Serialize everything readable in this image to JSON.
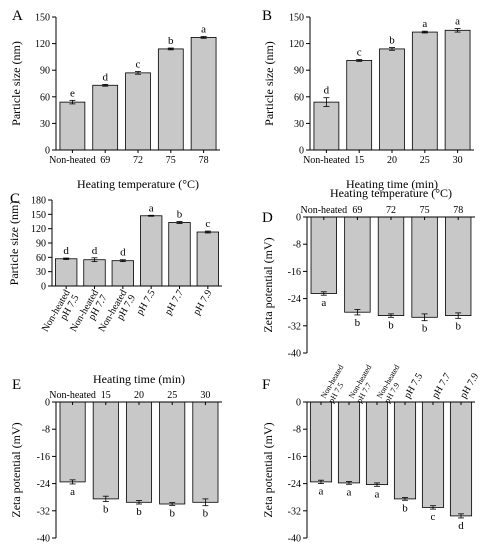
{
  "chart_data": [
    {
      "panel": "A",
      "type": "bar",
      "categories": [
        "Non-heated",
        "69",
        "72",
        "75",
        "78"
      ],
      "values": [
        54,
        73,
        87,
        114,
        127
      ],
      "errors": [
        2,
        1,
        1.5,
        1,
        1
      ],
      "letters": [
        "e",
        "d",
        "c",
        "b",
        "a"
      ],
      "xlabel": "Heating temperature (°C)",
      "ylabel": "Particle size (nm)",
      "ylim": [
        0,
        150
      ],
      "yticks": [
        0,
        30,
        60,
        90,
        120,
        150
      ],
      "ytick_labels": [
        "0",
        "30",
        "60",
        "90",
        "120",
        "150"
      ]
    },
    {
      "panel": "B",
      "type": "bar",
      "categories": [
        "Non-heated",
        "15",
        "20",
        "25",
        "30"
      ],
      "values": [
        54,
        101,
        114,
        133,
        135
      ],
      "errors": [
        5,
        1,
        1.5,
        1,
        2
      ],
      "letters": [
        "d",
        "c",
        "b",
        "a",
        "a"
      ],
      "xlabel": "Heating time (min)",
      "ylabel": "Particle size (nm)",
      "ylim": [
        0,
        150
      ],
      "yticks": [
        0,
        30,
        60,
        90,
        120,
        150
      ],
      "ytick_labels": [
        "0",
        "30",
        "60",
        "90",
        "120",
        "150"
      ]
    },
    {
      "panel": "C",
      "type": "bar",
      "categories": [
        "Non-heated pH 7.5",
        "Non-heated pH 7.7",
        "Non-heated pH 7.9",
        "pH 7.5",
        "pH 7.7",
        "pH 7.9"
      ],
      "values": [
        57,
        55,
        53,
        147,
        133,
        113
      ],
      "errors": [
        1.5,
        4,
        2,
        1,
        2,
        2
      ],
      "letters": [
        "d",
        "d",
        "d",
        "a",
        "b",
        "c"
      ],
      "xlabel": "",
      "ylabel": "Particle size (nm)",
      "ylim": [
        0,
        180
      ],
      "yticks": [
        0,
        30,
        60,
        90,
        120,
        150,
        180
      ],
      "ytick_labels": [
        "0",
        "30",
        "60",
        "90",
        "120",
        "150",
        "180"
      ]
    },
    {
      "panel": "D",
      "type": "bar",
      "categories": [
        "Non-heated",
        "69",
        "72",
        "75",
        "78"
      ],
      "values": [
        -22.5,
        -28,
        -29,
        -29.5,
        -29
      ],
      "errors": [
        0.5,
        0.8,
        0.5,
        1,
        0.8
      ],
      "letters": [
        "a",
        "b",
        "b",
        "b",
        "b"
      ],
      "xlabel": "Heating temperature (°C)",
      "ylabel": "Zeta potential (mV)",
      "ylim": [
        -40,
        0
      ],
      "yticks": [
        0,
        -8,
        -16,
        -24,
        -32,
        -40
      ],
      "ytick_labels": [
        "0",
        "-8",
        "-16",
        "-24",
        "-32",
        "-40"
      ]
    },
    {
      "panel": "E",
      "type": "bar",
      "categories": [
        "Non-heated",
        "15",
        "20",
        "25",
        "30"
      ],
      "values": [
        -23.5,
        -28.5,
        -29.5,
        -30,
        -29.5
      ],
      "errors": [
        0.6,
        0.8,
        0.5,
        0.4,
        1
      ],
      "letters": [
        "a",
        "b",
        "b",
        "b",
        "b"
      ],
      "xlabel": "Heating time (min)",
      "ylabel": "Zeta potential (mV)",
      "ylim": [
        -40,
        0
      ],
      "yticks": [
        0,
        -8,
        -16,
        -24,
        -32,
        -40
      ],
      "ytick_labels": [
        "0",
        "-8",
        "-16",
        "-24",
        "-32",
        "-40"
      ]
    },
    {
      "panel": "F",
      "type": "bar",
      "categories": [
        "Non-heated pH 7.5",
        "Non-heated pH 7.7",
        "Non-heated pH 7.9",
        "pH 7.5",
        "pH 7.7",
        "pH 7.9"
      ],
      "values": [
        -23.5,
        -23.8,
        -24.3,
        -28.5,
        -31,
        -33.5
      ],
      "errors": [
        0.5,
        0.4,
        0.5,
        0.4,
        0.5,
        0.6
      ],
      "letters": [
        "a",
        "a",
        "a",
        "b",
        "c",
        "d"
      ],
      "xlabel": "",
      "ylabel": "Zeta potential (mV)",
      "ylim": [
        -40,
        0
      ],
      "yticks": [
        0,
        -8,
        -16,
        -24,
        -32,
        -40
      ],
      "ytick_labels": [
        "0",
        "-8",
        "-16",
        "-24",
        "-32",
        "-40"
      ]
    }
  ]
}
